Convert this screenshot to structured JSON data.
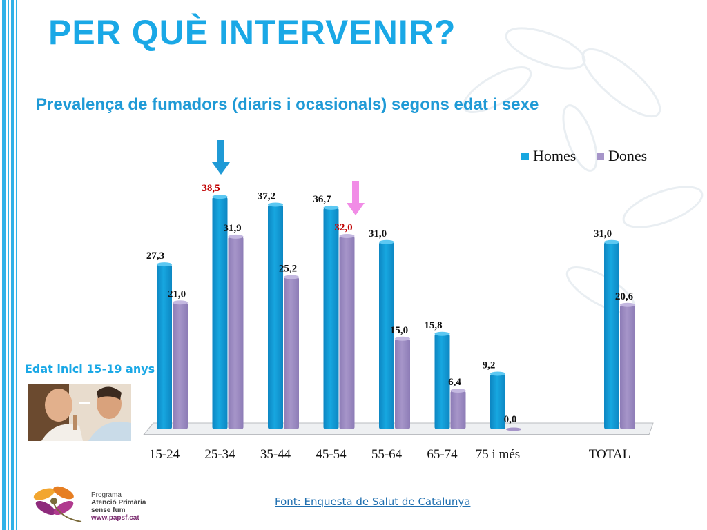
{
  "slide": {
    "title": "PER QUÈ INTERVENIR?",
    "subtitle": "Prevalença de fumadors (diaris i ocasionals) segons edat i sexe",
    "onset_note": "Edat inici 15-19 anys",
    "source": "Font: Enquesta de Salut de Catalunya ",
    "logo": {
      "line1": "Programa",
      "line2": "Atenció Primària",
      "line3": "sense fum",
      "line4": "www.papsf.cat"
    }
  },
  "colors": {
    "title": "#1aa8e6",
    "homes": "#17a7e0",
    "dones": "#a695c9",
    "highlight_text": "#c00000",
    "arrow_homes": "#1f9ad6",
    "arrow_dones": "#f18ce6"
  },
  "chart_data": {
    "type": "bar",
    "title": "Prevalença de fumadors (diaris i ocasionals) segons edat i sexe",
    "categories": [
      "15-24",
      "25-34",
      "35-44",
      "45-54",
      "55-64",
      "65-74",
      "75 i més",
      "TOTAL"
    ],
    "series": [
      {
        "name": "Homes",
        "values": [
          27.3,
          38.5,
          37.2,
          36.7,
          31.0,
          15.8,
          9.2,
          31.0
        ],
        "labels": [
          "27,3",
          "38,5",
          "37,2",
          "36,7",
          "31,0",
          "15,8",
          "9,2",
          "31,0"
        ]
      },
      {
        "name": "Dones",
        "values": [
          21.0,
          31.9,
          25.2,
          32.0,
          15.0,
          6.4,
          0.0,
          20.6
        ],
        "labels": [
          "21,0",
          "31,9",
          "25,2",
          "32,0",
          "15,0",
          "6,4",
          "0,0",
          "20,6"
        ]
      }
    ],
    "highlights": [
      {
        "series": "Homes",
        "category": "25-34"
      },
      {
        "series": "Dones",
        "category": "45-54"
      }
    ],
    "legend": "top-right",
    "ylim": [
      0,
      40
    ],
    "grid": false,
    "xlabel": "",
    "ylabel": ""
  }
}
